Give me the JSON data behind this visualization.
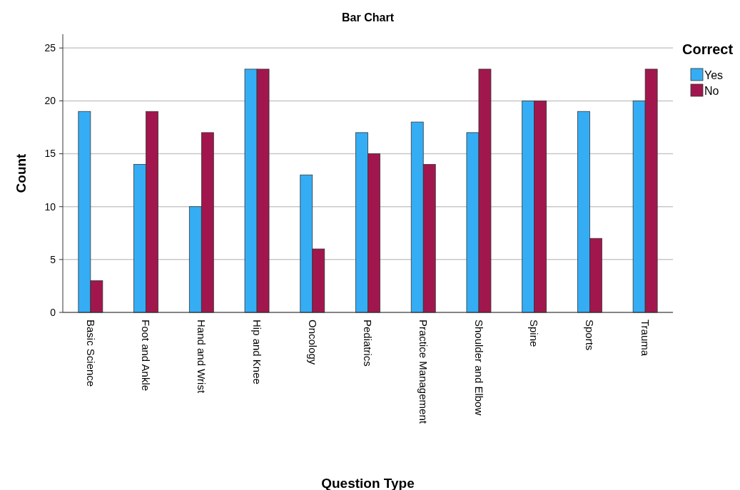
{
  "chart_data": {
    "type": "bar",
    "title": "Bar Chart",
    "xlabel": "Question Type",
    "ylabel": "Count",
    "legend_title": "Correct",
    "categories": [
      "Basic Science",
      "Foot and Ankle",
      "Hand and Wrist",
      "Hip and Knee",
      "Oncology",
      "Pediatrics",
      "Practice Management",
      "Shoulder and Elbow",
      "Spine",
      "Sports",
      "Trauma"
    ],
    "series": [
      {
        "name": "Yes",
        "color": "#35adf5",
        "values": [
          19,
          14,
          10,
          23,
          13,
          17,
          18,
          17,
          20,
          19,
          20
        ]
      },
      {
        "name": "No",
        "color": "#a1174d",
        "values": [
          3,
          19,
          17,
          23,
          6,
          15,
          14,
          23,
          20,
          7,
          23
        ]
      }
    ],
    "ylim": [
      0,
      26.3
    ],
    "yticks": [
      0,
      5,
      10,
      15,
      20,
      25
    ],
    "grid": "y",
    "legend": "top right"
  }
}
